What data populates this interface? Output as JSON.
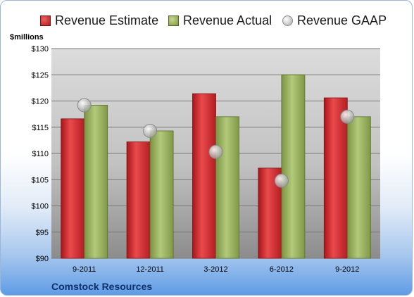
{
  "company": "Comstock Resources",
  "unit_label": "$millions",
  "colors": {
    "estimate": "#c0262a",
    "actual": "#8fa84e",
    "gaap": "#c8c8c8"
  },
  "chart_data": {
    "type": "bar",
    "categories": [
      "9-2011",
      "12-2011",
      "3-2012",
      "6-2012",
      "9-2012"
    ],
    "series": [
      {
        "name": "Revenue Estimate",
        "type": "bar",
        "values": [
          116.6,
          112.2,
          121.4,
          107.2,
          120.6
        ]
      },
      {
        "name": "Revenue Actual",
        "type": "bar",
        "values": [
          119.2,
          114.3,
          117.0,
          125.0,
          117.0
        ]
      },
      {
        "name": "Revenue GAAP",
        "type": "marker",
        "values": [
          119.2,
          114.3,
          110.3,
          104.8,
          117.0
        ]
      }
    ],
    "ylim": [
      90,
      130
    ],
    "yticks": [
      "$90",
      "$95",
      "$100",
      "$105",
      "$110",
      "$115",
      "$120",
      "$125",
      "$130"
    ],
    "ylabel": "$millions",
    "legend": "top",
    "grid": true
  }
}
